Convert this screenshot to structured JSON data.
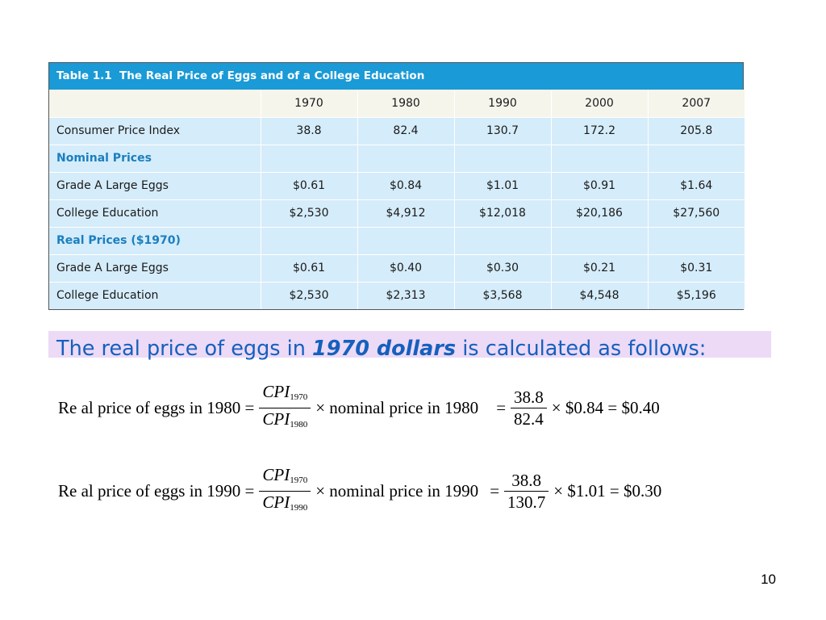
{
  "table": {
    "caption": "Table 1.1  The Real Price of Eggs and of a College Education",
    "years": [
      "1970",
      "1980",
      "1990",
      "2000",
      "2007"
    ],
    "rows": [
      {
        "label": "Consumer Price Index",
        "values": [
          "38.8",
          "82.4",
          "130.7",
          "172.2",
          "205.8"
        ]
      },
      {
        "label": "Nominal Prices",
        "values": []
      },
      {
        "label": "Grade A Large Eggs",
        "values": [
          "$0.61",
          "$0.84",
          "$1.01",
          "$0.91",
          "$1.64"
        ]
      },
      {
        "label": "College Education",
        "values": [
          "$2,530",
          "$4,912",
          "$12,018",
          "$20,186",
          "$27,560"
        ]
      },
      {
        "label": "Real Prices ($1970)",
        "values": []
      },
      {
        "label": "Grade A Large Eggs",
        "values": [
          "$0.61",
          "$0.40",
          "$0.30",
          "$0.21",
          "$0.31"
        ]
      },
      {
        "label": "College Education",
        "values": [
          "$2,530",
          "$2,313",
          "$3,568",
          "$4,548",
          "$5,196"
        ]
      }
    ]
  },
  "banner": {
    "prefix": "The real price of eggs in ",
    "emphasis": "1970 dollars",
    "suffix": " is calculated as follows:"
  },
  "formula1": {
    "lhs": "Re al price of eggs in 1980 =",
    "cpi": "CPI",
    "num_sub": "1970",
    "den_sub": "1980",
    "mid": "× nominal price in 1980",
    "eq": "=",
    "num_value": "38.8",
    "den_value": "82.4",
    "tail": "× $0.84 = $0.40"
  },
  "formula2": {
    "lhs": "Re al price of eggs in 1990 =",
    "cpi": "CPI",
    "num_sub": "1970",
    "den_sub": "1990",
    "mid": "× nominal price in 1990",
    "eq": "=",
    "num_value": "38.8",
    "den_value": "130.7",
    "tail": "× $1.01 = $0.30"
  },
  "page_number": "10"
}
